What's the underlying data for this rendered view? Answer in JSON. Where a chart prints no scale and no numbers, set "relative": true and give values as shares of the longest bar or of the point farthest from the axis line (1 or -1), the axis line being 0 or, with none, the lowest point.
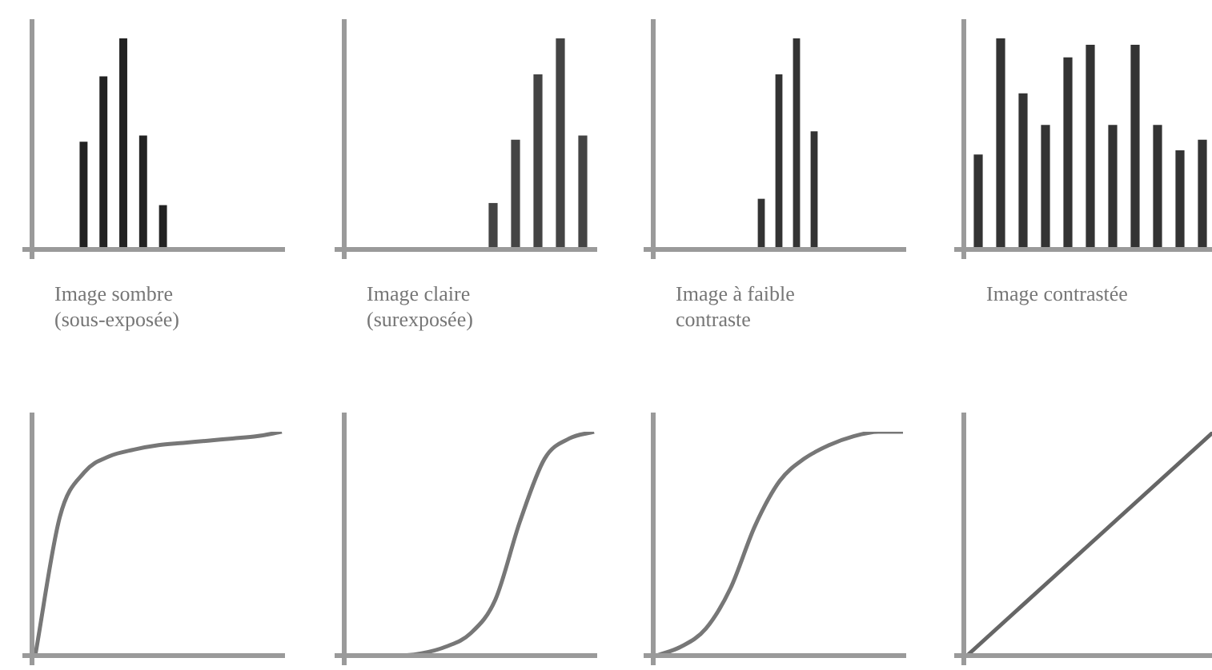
{
  "chart_data": [
    {
      "type": "bar",
      "relative": true,
      "xlabel": "Image sombre (sous-exposée)",
      "categories": [
        null,
        null,
        null,
        null,
        null
      ],
      "values": [
        0.51,
        0.82,
        1,
        0.54,
        0.21
      ],
      "color": "#222222",
      "grid": false,
      "tick_labels": false
    },
    {
      "type": "bar",
      "relative": true,
      "xlabel": "Image claire (surexposée)",
      "categories": [
        null,
        null,
        null,
        null,
        null
      ],
      "values": [
        0.22,
        0.52,
        0.83,
        1,
        0.54
      ],
      "color": "#444444",
      "grid": false,
      "tick_labels": false
    },
    {
      "type": "bar",
      "relative": true,
      "xlabel": "Image à faible contraste",
      "categories": [
        null,
        null,
        null,
        null
      ],
      "values": [
        0.24,
        0.83,
        1,
        0.56
      ],
      "color": "#333333",
      "grid": false,
      "tick_labels": false
    },
    {
      "type": "bar",
      "relative": true,
      "xlabel": "Image contrastée",
      "categories": [
        null,
        null,
        null,
        null,
        null,
        null,
        null,
        null,
        null,
        null,
        null
      ],
      "values": [
        0.45,
        1,
        0.74,
        0.59,
        0.91,
        0.97,
        0.59,
        0.97,
        0.59,
        0.47,
        0.52
      ],
      "color": "#333333",
      "grid": false,
      "tick_labels": false
    },
    {
      "type": "line",
      "relative": true,
      "categories": [
        null,
        null,
        null,
        null,
        null,
        null,
        null,
        null,
        null,
        null,
        null
      ],
      "values": [
        0,
        0.62,
        0.82,
        0.89,
        0.92,
        0.94,
        0.95,
        0.96,
        0.97,
        0.98,
        1
      ],
      "color": "#777777",
      "grid": false,
      "tick_labels": false,
      "marker": "none"
    },
    {
      "type": "line",
      "relative": true,
      "categories": [
        null,
        null,
        null,
        null,
        null,
        null,
        null,
        null,
        null,
        null,
        null
      ],
      "values": [
        0,
        0,
        0,
        0.01,
        0.04,
        0.1,
        0.25,
        0.6,
        0.88,
        0.97,
        1
      ],
      "color": "#777777",
      "grid": false,
      "tick_labels": false,
      "marker": "none"
    },
    {
      "type": "line",
      "relative": true,
      "categories": [
        null,
        null,
        null,
        null,
        null,
        null,
        null,
        null,
        null,
        null,
        null
      ],
      "values": [
        0,
        0.04,
        0.12,
        0.3,
        0.58,
        0.78,
        0.88,
        0.94,
        0.98,
        1,
        1
      ],
      "color": "#777777",
      "grid": false,
      "tick_labels": false,
      "marker": "none"
    },
    {
      "type": "line",
      "relative": true,
      "categories": [
        null,
        null,
        null,
        null,
        null,
        null,
        null,
        null,
        null,
        null,
        null
      ],
      "values": [
        0,
        0.1,
        0.2,
        0.3,
        0.4,
        0.5,
        0.6,
        0.7,
        0.8,
        0.9,
        1
      ],
      "color": "#666666",
      "grid": false,
      "tick_labels": false,
      "marker": "none"
    }
  ]
}
